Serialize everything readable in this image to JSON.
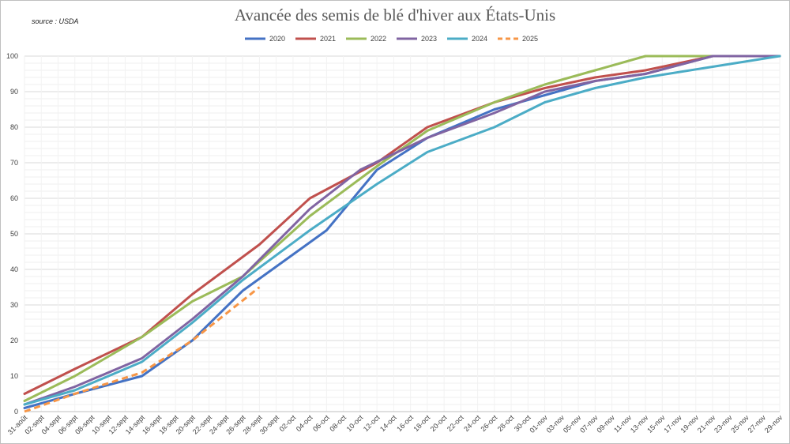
{
  "source_label": "source : USDA",
  "chart_data": {
    "type": "line",
    "title": "Avancée des semis de blé d'hiver aux États-Unis",
    "xlabel": "",
    "ylabel": "",
    "ylim": [
      0,
      100
    ],
    "yticks": [
      0,
      10,
      20,
      30,
      40,
      50,
      60,
      70,
      80,
      90,
      100
    ],
    "grid": true,
    "legend_position": "top-center",
    "categories": [
      "31-août",
      "02-sept",
      "04-sept",
      "06-sept",
      "08-sept",
      "10-sept",
      "12-sept",
      "14-sept",
      "16-sept",
      "18-sept",
      "20-sept",
      "22-sept",
      "24-sept",
      "26-sept",
      "28-sept",
      "30-sept",
      "02-oct",
      "04-oct",
      "06-oct",
      "08-oct",
      "10-oct",
      "12-oct",
      "14-oct",
      "16-oct",
      "18-oct",
      "20-oct",
      "22-oct",
      "24-oct",
      "26-oct",
      "28-oct",
      "30-oct",
      "01-nov",
      "03-nov",
      "05-nov",
      "07-nov",
      "09-nov",
      "11-nov",
      "13-nov",
      "15-nov",
      "17-nov",
      "19-nov",
      "21-nov",
      "23-nov",
      "25-nov",
      "27-nov",
      "29-nov"
    ],
    "series": [
      {
        "name": "2020",
        "color": "#4472C4",
        "dashed": false,
        "points": [
          [
            0,
            1
          ],
          [
            3,
            5
          ],
          [
            7,
            10
          ],
          [
            10,
            20
          ],
          [
            13,
            34
          ],
          [
            18,
            51
          ],
          [
            21,
            68
          ],
          [
            24,
            77
          ],
          [
            28,
            85
          ],
          [
            31,
            89
          ],
          [
            34,
            93
          ],
          [
            37,
            95
          ],
          [
            41,
            100
          ],
          [
            45,
            100
          ]
        ]
      },
      {
        "name": "2021",
        "color": "#C0504D",
        "dashed": false,
        "points": [
          [
            0,
            5
          ],
          [
            3,
            12
          ],
          [
            7,
            21
          ],
          [
            10,
            33
          ],
          [
            14,
            47
          ],
          [
            17,
            60
          ],
          [
            21,
            70
          ],
          [
            24,
            80
          ],
          [
            28,
            87
          ],
          [
            31,
            91
          ],
          [
            34,
            94
          ],
          [
            37,
            96
          ],
          [
            41,
            100
          ],
          [
            45,
            100
          ]
        ]
      },
      {
        "name": "2022",
        "color": "#9BBB59",
        "dashed": false,
        "points": [
          [
            0,
            3
          ],
          [
            3,
            10
          ],
          [
            7,
            21
          ],
          [
            10,
            31
          ],
          [
            13,
            38
          ],
          [
            17,
            55
          ],
          [
            21,
            69
          ],
          [
            24,
            79
          ],
          [
            28,
            87
          ],
          [
            31,
            92
          ],
          [
            34,
            96
          ],
          [
            37,
            100
          ],
          [
            41,
            100
          ],
          [
            45,
            100
          ]
        ]
      },
      {
        "name": "2023",
        "color": "#8064A2",
        "dashed": false,
        "points": [
          [
            0,
            2
          ],
          [
            3,
            7
          ],
          [
            7,
            15
          ],
          [
            10,
            26
          ],
          [
            13,
            38
          ],
          [
            17,
            57
          ],
          [
            20,
            68
          ],
          [
            24,
            77
          ],
          [
            28,
            84
          ],
          [
            31,
            90
          ],
          [
            34,
            93
          ],
          [
            37,
            95
          ],
          [
            41,
            100
          ],
          [
            45,
            100
          ]
        ]
      },
      {
        "name": "2024",
        "color": "#4BACC6",
        "dashed": false,
        "points": [
          [
            0,
            2
          ],
          [
            3,
            6
          ],
          [
            7,
            14
          ],
          [
            10,
            25
          ],
          [
            13,
            37
          ],
          [
            17,
            51
          ],
          [
            21,
            64
          ],
          [
            24,
            73
          ],
          [
            28,
            80
          ],
          [
            31,
            87
          ],
          [
            34,
            91
          ],
          [
            37,
            94
          ],
          [
            41,
            97
          ],
          [
            45,
            100
          ]
        ]
      },
      {
        "name": "2025",
        "color": "#F79646",
        "dashed": true,
        "points": [
          [
            0,
            0
          ],
          [
            3,
            5
          ],
          [
            7,
            11
          ],
          [
            10,
            20
          ],
          [
            14,
            35
          ]
        ]
      }
    ]
  }
}
